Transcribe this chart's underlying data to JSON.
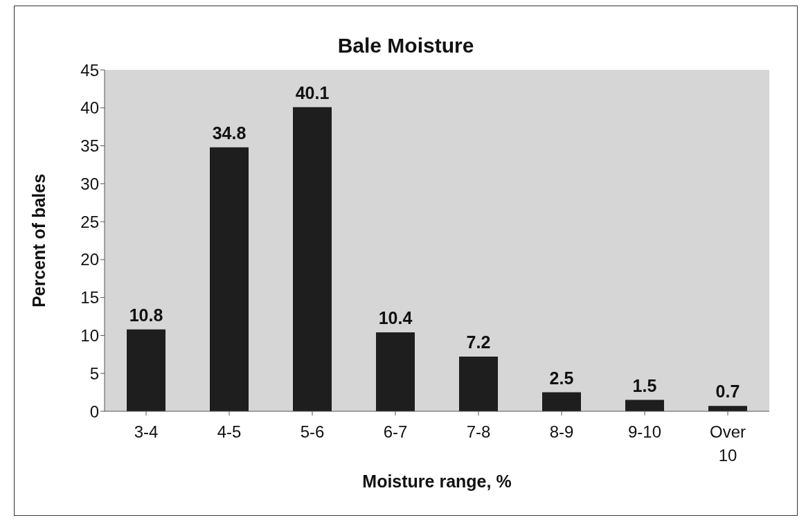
{
  "chart_data": {
    "type": "bar",
    "title": "Bale Moisture",
    "xlabel": "Moisture range, %",
    "ylabel": "Percent of bales",
    "categories": [
      "3-4",
      "4-5",
      "5-6",
      "6-7",
      "7-8",
      "8-9",
      "9-10",
      "Over 10"
    ],
    "values": [
      10.8,
      34.8,
      40.1,
      10.4,
      7.2,
      2.5,
      1.5,
      0.7
    ],
    "color": "#1e1e1e",
    "ylim": [
      0,
      45
    ],
    "yticks": [
      0,
      5,
      10,
      15,
      20,
      25,
      30,
      35,
      40,
      45
    ],
    "grid": false,
    "data_labels": true
  }
}
